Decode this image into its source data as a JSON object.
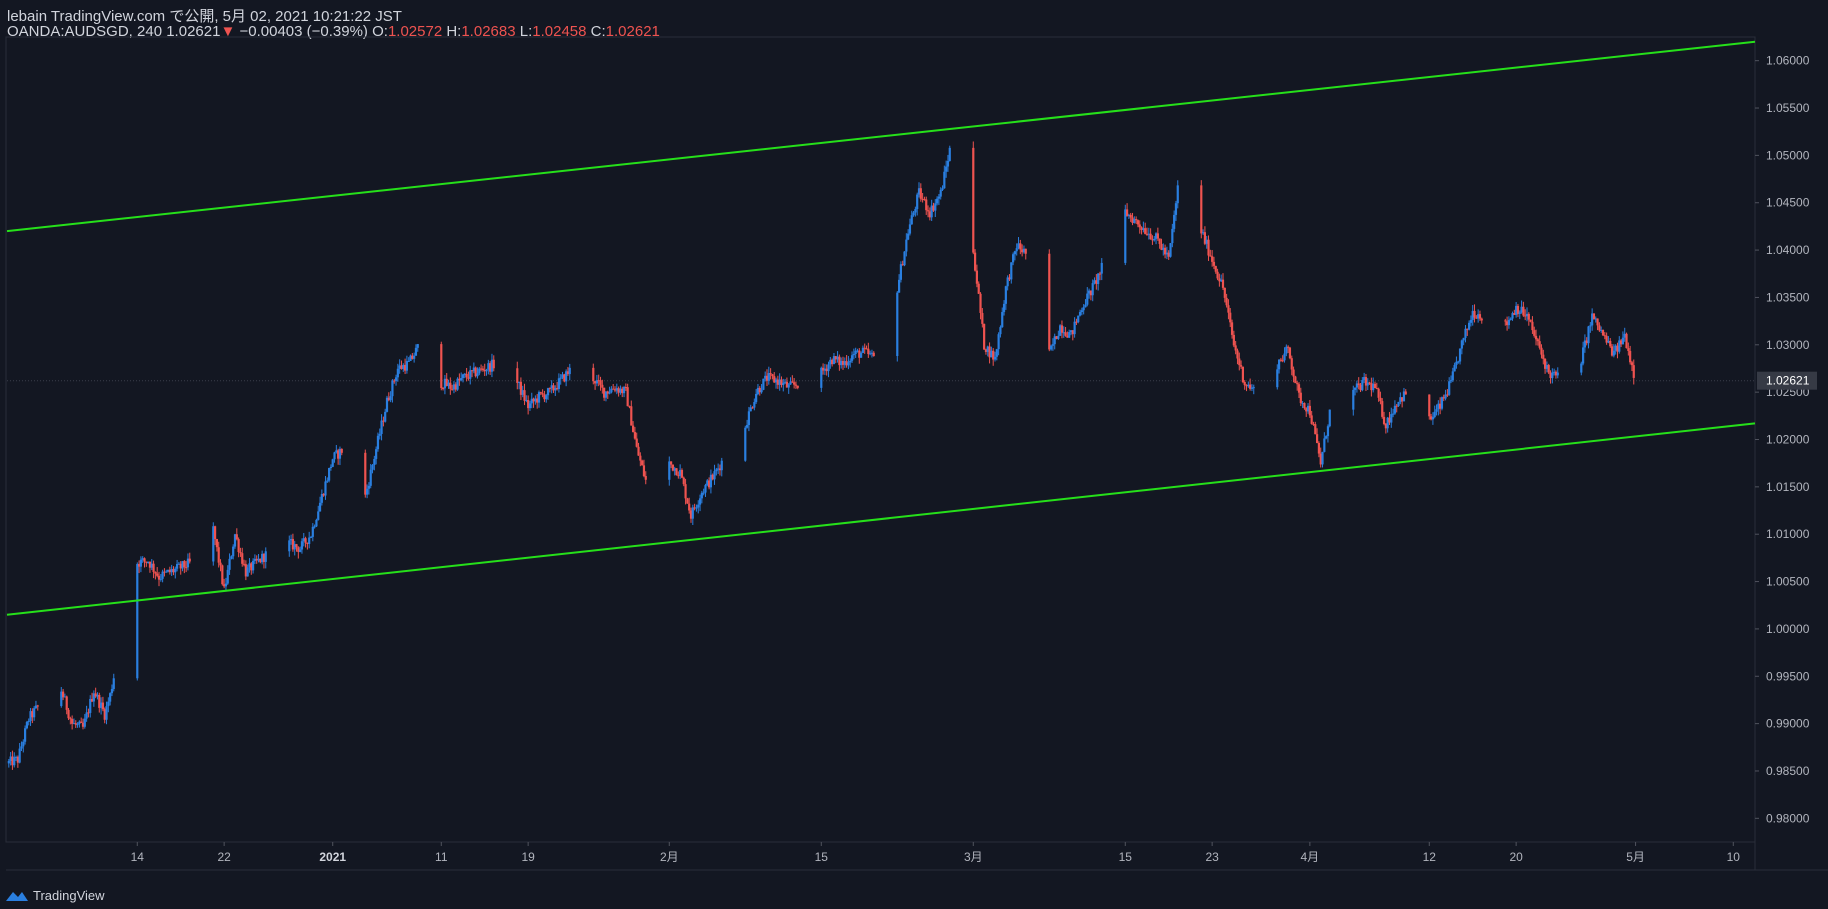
{
  "header": {
    "publish_line": "lebain TradingView.com で公開, 5月 02, 2021 10:21:22 JST",
    "symbol": "OANDA:AUDSGD, 240",
    "last": "1.02621",
    "down_arrow": "▼",
    "change": "−0.00403 (−0.39%)",
    "o_label": "O:",
    "o_value": "1.02572",
    "h_label": "H:",
    "h_value": "1.02683",
    "l_label": "L:",
    "l_value": "1.02458",
    "c_label": "C:",
    "c_value": "1.02621"
  },
  "footer": {
    "brand": "TradingView",
    "icon": "tradingview-logo-icon"
  },
  "colors": {
    "background": "#131722",
    "up": "#2a7fe0",
    "down": "#ef5350",
    "channel": "#26e01a",
    "axis_text": "#b2b5be",
    "grid_border": "#2a2e39"
  },
  "chart_data": {
    "type": "candlestick",
    "symbol": "OANDA:AUDSGD",
    "interval": "240",
    "x_range": [
      "2020-12-02",
      "2021-05-12"
    ],
    "y_range": [
      0.9775,
      1.0625
    ],
    "x_ticks": [
      {
        "label": "14",
        "date": "2020-12-14",
        "bold": false
      },
      {
        "label": "22",
        "date": "2020-12-22",
        "bold": false
      },
      {
        "label": "2021",
        "date": "2021-01-01",
        "bold": true
      },
      {
        "label": "11",
        "date": "2021-01-11",
        "bold": false
      },
      {
        "label": "19",
        "date": "2021-01-19",
        "bold": false
      },
      {
        "label": "2月",
        "date": "2021-02-01",
        "bold": false
      },
      {
        "label": "15",
        "date": "2021-02-15",
        "bold": false
      },
      {
        "label": "3月",
        "date": "2021-03-01",
        "bold": false
      },
      {
        "label": "15",
        "date": "2021-03-15",
        "bold": false
      },
      {
        "label": "23",
        "date": "2021-03-23",
        "bold": false
      },
      {
        "label": "4月",
        "date": "2021-04-01",
        "bold": false
      },
      {
        "label": "12",
        "date": "2021-04-12",
        "bold": false
      },
      {
        "label": "20",
        "date": "2021-04-20",
        "bold": false
      },
      {
        "label": "5月",
        "date": "2021-05-01",
        "bold": false
      },
      {
        "label": "10",
        "date": "2021-05-10",
        "bold": false
      }
    ],
    "y_ticks": [
      "1.06000",
      "1.05500",
      "1.05000",
      "1.04500",
      "1.04000",
      "1.03500",
      "1.03000",
      "1.02500",
      "1.02000",
      "1.01500",
      "1.01000",
      "1.00500",
      "1.00000",
      "0.99500",
      "0.99000",
      "0.98500",
      "0.98000"
    ],
    "last_price": 1.02621,
    "last_price_label": "1.02621",
    "channel_lines": [
      {
        "name": "upper",
        "start": {
          "date": "2020-12-02",
          "price": 1.042
        },
        "end": {
          "date": "2021-05-12",
          "price": 1.062
        }
      },
      {
        "name": "lower",
        "start": {
          "date": "2020-12-02",
          "price": 1.0015
        },
        "end": {
          "date": "2021-05-12",
          "price": 1.0217
        }
      }
    ],
    "price_path": [
      [
        "2020-12-02",
        0.9858
      ],
      [
        "2020-12-03",
        0.9862
      ],
      [
        "2020-12-04",
        0.9905
      ],
      [
        "2020-12-05",
        0.992
      ],
      [
        "2020-12-07",
        0.9935
      ],
      [
        "2020-12-08",
        0.99
      ],
      [
        "2020-12-09",
        0.9895
      ],
      [
        "2020-12-10",
        0.9935
      ],
      [
        "2020-12-11",
        0.991
      ],
      [
        "2020-12-11",
        0.993
      ],
      [
        "2020-12-12",
        0.996
      ],
      [
        "2020-12-13",
        1.001
      ],
      [
        "2020-12-14",
        1.007
      ],
      [
        "2020-12-15",
        1.0072
      ],
      [
        "2020-12-16",
        1.0055
      ],
      [
        "2020-12-17",
        1.006
      ],
      [
        "2020-12-18",
        1.0065
      ],
      [
        "2020-12-19",
        1.007
      ],
      [
        "2020-12-20",
        1.011
      ],
      [
        "2020-12-21",
        1.0105
      ],
      [
        "2020-12-22",
        1.004
      ],
      [
        "2020-12-23",
        1.01
      ],
      [
        "2020-12-24",
        1.006
      ],
      [
        "2020-12-26",
        1.008
      ],
      [
        "2020-12-28",
        1.009
      ],
      [
        "2020-12-29",
        1.0085
      ],
      [
        "2020-12-30",
        1.01
      ],
      [
        "2020-12-31",
        1.014
      ],
      [
        "2021-01-01",
        1.018
      ],
      [
        "2021-01-02",
        1.019
      ],
      [
        "2021-01-03",
        1.0175
      ],
      [
        "2021-01-04",
        1.014
      ],
      [
        "2021-01-05",
        1.019
      ],
      [
        "2021-01-06",
        1.024
      ],
      [
        "2021-01-07",
        1.0275
      ],
      [
        "2021-01-08",
        1.028
      ],
      [
        "2021-01-09",
        1.03
      ],
      [
        "2021-01-10",
        1.03
      ],
      [
        "2021-01-11",
        1.026
      ],
      [
        "2021-01-12",
        1.0255
      ],
      [
        "2021-01-13",
        1.0265
      ],
      [
        "2021-01-14",
        1.027
      ],
      [
        "2021-01-15",
        1.0275
      ],
      [
        "2021-01-16",
        1.028
      ],
      [
        "2021-01-17",
        1.0305
      ],
      [
        "2021-01-18",
        1.026
      ],
      [
        "2021-01-19",
        1.0235
      ],
      [
        "2021-01-20",
        1.0245
      ],
      [
        "2021-01-21",
        1.025
      ],
      [
        "2021-01-22",
        1.0262
      ],
      [
        "2021-01-23",
        1.0275
      ],
      [
        "2021-01-25",
        1.0265
      ],
      [
        "2021-01-26",
        1.025
      ],
      [
        "2021-01-27",
        1.0255
      ],
      [
        "2021-01-28",
        1.025
      ],
      [
        "2021-01-29",
        1.019
      ],
      [
        "2021-01-30",
        1.015
      ],
      [
        "2021-01-31",
        1.0165
      ],
      [
        "2021-02-01",
        1.0175
      ],
      [
        "2021-02-02",
        1.0165
      ],
      [
        "2021-02-03",
        1.012
      ],
      [
        "2021-02-04",
        1.0145
      ],
      [
        "2021-02-05",
        1.016
      ],
      [
        "2021-02-06",
        1.018
      ],
      [
        "2021-02-07",
        1.0175
      ],
      [
        "2021-02-08",
        1.0215
      ],
      [
        "2021-02-09",
        1.025
      ],
      [
        "2021-02-10",
        1.0265
      ],
      [
        "2021-02-11",
        1.0262
      ],
      [
        "2021-02-12",
        1.0255
      ],
      [
        "2021-02-13",
        1.026
      ],
      [
        "2021-02-14",
        1.0265
      ],
      [
        "2021-02-15",
        1.027
      ],
      [
        "2021-02-16",
        1.0285
      ],
      [
        "2021-02-17",
        1.028
      ],
      [
        "2021-02-18",
        1.029
      ],
      [
        "2021-02-19",
        1.0292
      ],
      [
        "2021-02-20",
        1.0285
      ],
      [
        "2021-02-21",
        1.03
      ],
      [
        "2021-02-22",
        1.036
      ],
      [
        "2021-02-23",
        1.042
      ],
      [
        "2021-02-24",
        1.046
      ],
      [
        "2021-02-25",
        1.044
      ],
      [
        "2021-02-26",
        1.046
      ],
      [
        "2021-02-27",
        1.0515
      ],
      [
        "2021-02-28",
        1.0525
      ],
      [
        "2021-02-28",
        1.048
      ],
      [
        "2021-03-01",
        1.04
      ],
      [
        "2021-03-02",
        1.03
      ],
      [
        "2021-03-03",
        1.0285
      ],
      [
        "2021-03-04",
        1.036
      ],
      [
        "2021-03-05",
        1.0405
      ],
      [
        "2021-03-06",
        1.0395
      ],
      [
        "2021-03-07",
        1.034
      ],
      [
        "2021-03-08",
        1.029
      ],
      [
        "2021-03-09",
        1.032
      ],
      [
        "2021-03-10",
        1.031
      ],
      [
        "2021-03-11",
        1.034
      ],
      [
        "2021-03-12",
        1.036
      ],
      [
        "2021-03-13",
        1.0385
      ],
      [
        "2021-03-14",
        1.0425
      ],
      [
        "2021-03-15",
        1.044
      ],
      [
        "2021-03-16",
        1.043
      ],
      [
        "2021-03-17",
        1.042
      ],
      [
        "2021-03-18",
        1.041
      ],
      [
        "2021-03-19",
        1.039
      ],
      [
        "2021-03-20",
        1.048
      ],
      [
        "2021-03-21",
        1.044
      ],
      [
        "2021-03-22",
        1.042
      ],
      [
        "2021-03-23",
        1.039
      ],
      [
        "2021-03-24",
        1.036
      ],
      [
        "2021-03-25",
        1.03
      ],
      [
        "2021-03-26",
        1.026
      ],
      [
        "2021-03-27",
        1.025
      ],
      [
        "2021-03-28",
        1.0245
      ],
      [
        "2021-03-29",
        1.028
      ],
      [
        "2021-03-30",
        1.0295
      ],
      [
        "2021-03-31",
        1.0245
      ],
      [
        "2021-04-01",
        1.023
      ],
      [
        "2021-04-02",
        1.0175
      ],
      [
        "2021-04-03",
        1.024
      ],
      [
        "2021-04-05",
        1.025
      ],
      [
        "2021-04-06",
        1.026
      ],
      [
        "2021-04-07",
        1.0255
      ],
      [
        "2021-04-08",
        1.0215
      ],
      [
        "2021-04-09",
        1.024
      ],
      [
        "2021-04-10",
        1.025
      ],
      [
        "2021-04-11",
        1.0215
      ],
      [
        "2021-04-12",
        1.022
      ],
      [
        "2021-04-13",
        1.0235
      ],
      [
        "2021-04-14",
        1.026
      ],
      [
        "2021-04-15",
        1.03
      ],
      [
        "2021-04-16",
        1.0335
      ],
      [
        "2021-04-17",
        1.033
      ],
      [
        "2021-04-18",
        1.031
      ],
      [
        "2021-04-19",
        1.032
      ],
      [
        "2021-04-20",
        1.034
      ],
      [
        "2021-04-21",
        1.033
      ],
      [
        "2021-04-22",
        1.03
      ],
      [
        "2021-04-23",
        1.027
      ],
      [
        "2021-04-24",
        1.0265
      ],
      [
        "2021-04-25",
        1.0275
      ],
      [
        "2021-04-26",
        1.0285
      ],
      [
        "2021-04-27",
        1.033
      ],
      [
        "2021-04-28",
        1.031
      ],
      [
        "2021-04-29",
        1.029
      ],
      [
        "2021-04-30",
        1.031
      ],
      [
        "2021-05-01",
        1.0262
      ]
    ]
  }
}
